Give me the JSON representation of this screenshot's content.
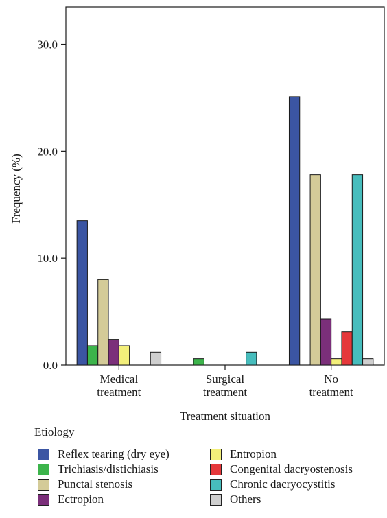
{
  "chart_data": {
    "type": "bar",
    "ylabel": "Frequency (%)",
    "xlabel": "Treatment situation",
    "ylim": [
      0,
      33.5
    ],
    "yticks": [
      0.0,
      10.0,
      20.0,
      30.0
    ],
    "ytick_labels": [
      "0.0",
      "10.0",
      "20.0",
      "30.0"
    ],
    "categories": [
      [
        "Medical",
        "treatment"
      ],
      [
        "Surgical",
        "treatment"
      ],
      [
        "No",
        "treatment"
      ]
    ],
    "legend_title": "Etiology",
    "series": [
      {
        "name": "Reflex tearing (dry eye)",
        "color": "#3b55a3",
        "values": [
          13.5,
          null,
          25.1
        ]
      },
      {
        "name": "Trichiasis/distichiasis",
        "color": "#3cb44b",
        "values": [
          1.8,
          0.6,
          null
        ]
      },
      {
        "name": "Punctal stenosis",
        "color": "#d4cb98",
        "values": [
          8.0,
          null,
          17.8
        ]
      },
      {
        "name": "Ectropion",
        "color": "#7b2f7a",
        "values": [
          2.4,
          null,
          4.3
        ]
      },
      {
        "name": "Entropion",
        "color": "#f3ef7a",
        "values": [
          1.8,
          null,
          0.6
        ]
      },
      {
        "name": "Congenital dacryostenosis",
        "color": "#e5383b",
        "values": [
          null,
          null,
          3.1
        ]
      },
      {
        "name": "Chronic dacryocystitis",
        "color": "#47bdbd",
        "values": [
          null,
          1.2,
          17.8
        ]
      },
      {
        "name": "Others",
        "color": "#cfcfcf",
        "values": [
          1.2,
          null,
          0.6
        ]
      }
    ]
  }
}
